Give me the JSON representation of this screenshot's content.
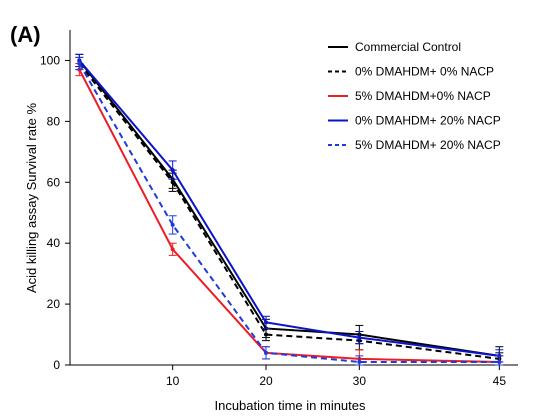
{
  "panel_label": "(A)",
  "chart_data": {
    "type": "line",
    "title": "",
    "xlabel": "Incubation time in minutes",
    "ylabel": "Acid killing assay Survival rate %",
    "x": [
      0,
      10,
      20,
      30,
      45
    ],
    "x_tick_labels": [
      "10",
      "20",
      "30",
      "45"
    ],
    "x_tick_values": [
      10,
      20,
      30,
      45
    ],
    "xlim": [
      -1,
      47
    ],
    "ylim": [
      0,
      110
    ],
    "y_ticks": [
      0,
      20,
      40,
      60,
      80,
      100
    ],
    "grid": false,
    "legend_position": "top-right",
    "series": [
      {
        "name": "Commercial Control",
        "color": "#000000",
        "dash": "solid",
        "values": [
          100,
          61,
          12,
          10,
          3
        ],
        "errors": [
          2,
          3,
          3,
          3,
          3
        ]
      },
      {
        "name": "0% DMAHDM+ 0% NACP",
        "color": "#000000",
        "dash": "dashed",
        "values": [
          99,
          60,
          10,
          8,
          2
        ],
        "errors": [
          2,
          3,
          2,
          3,
          2
        ]
      },
      {
        "name": "5% DMAHDM+0% NACP",
        "color": "#ee1c24",
        "dash": "solid",
        "values": [
          97,
          38,
          4,
          2,
          1
        ],
        "errors": [
          2,
          2,
          2,
          3,
          2
        ]
      },
      {
        "name": "0% DMAHDM+ 20% NACP",
        "color": "#0a14c8",
        "dash": "solid",
        "values": [
          100,
          64,
          14,
          9,
          3
        ],
        "errors": [
          2,
          3,
          2,
          2,
          2
        ]
      },
      {
        "name": "5% DMAHDM+ 20% NACP",
        "color": "#1e3cdc",
        "dash": "dashed",
        "values": [
          99,
          46,
          4,
          1,
          1
        ],
        "errors": [
          2,
          3,
          2,
          2,
          2
        ]
      }
    ]
  }
}
